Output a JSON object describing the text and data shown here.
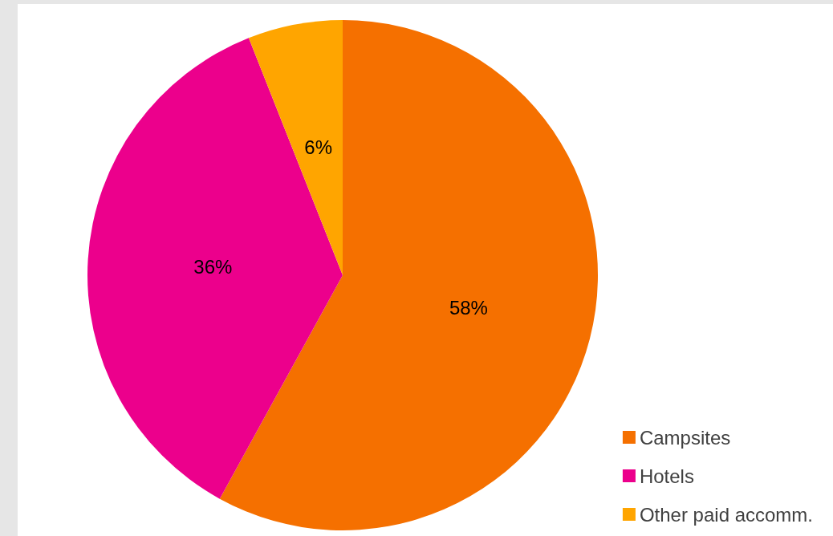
{
  "chart_data": {
    "type": "pie",
    "categories": [
      "Campsites",
      "Hotels",
      "Other paid accomm."
    ],
    "values": [
      58,
      36,
      6
    ],
    "colors": [
      "#f57000",
      "#ec008c",
      "#ffa500"
    ],
    "value_labels": [
      "58%",
      "36%",
      "6%"
    ],
    "legend": "bottom right"
  }
}
